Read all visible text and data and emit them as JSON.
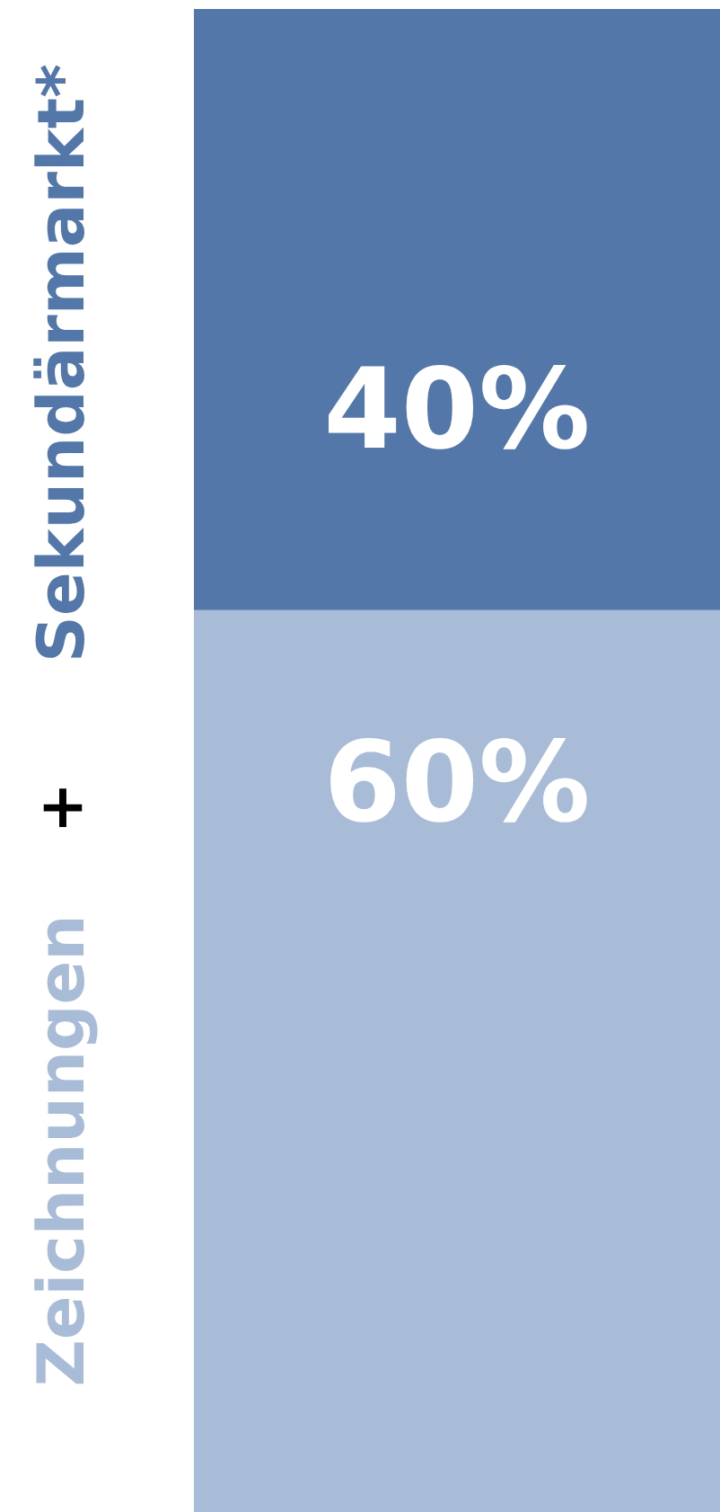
{
  "chart_data": {
    "type": "bar",
    "stacked": true,
    "categories": [
      null
    ],
    "ylim": [
      0,
      100
    ],
    "tick_labels": false,
    "legend": "left",
    "annotations": [
      "+"
    ],
    "series": [
      {
        "name": "Zeichnungen",
        "color": "#a9bcd7",
        "values": [
          60
        ],
        "value_labels": [
          "60%"
        ]
      },
      {
        "name": "Sekundärmarkt*",
        "color": "#5477a9",
        "values": [
          40
        ],
        "value_labels": [
          "40%"
        ]
      }
    ]
  }
}
